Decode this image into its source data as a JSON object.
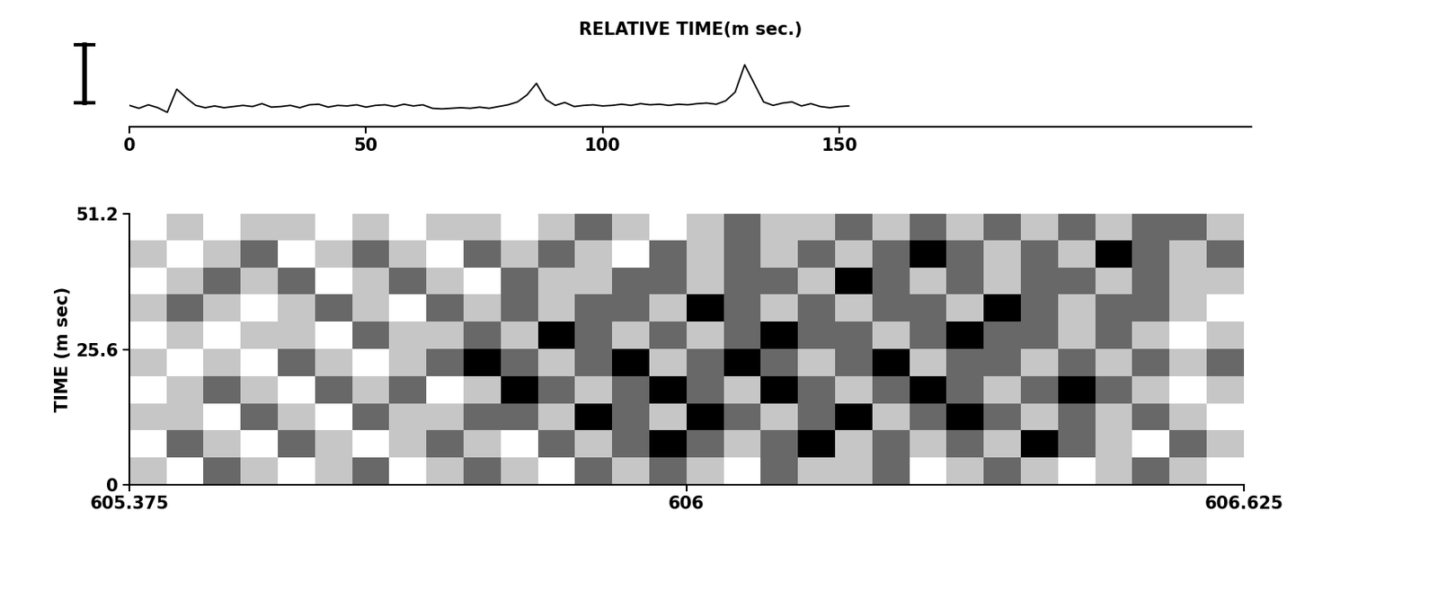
{
  "chart_data": [
    {
      "type": "line",
      "xlabel": "RELATIVE TIME(m sec.)",
      "x": [
        0,
        2,
        4,
        6,
        8,
        10,
        12,
        14,
        16,
        18,
        20,
        22,
        24,
        26,
        28,
        30,
        32,
        34,
        36,
        38,
        40,
        42,
        44,
        46,
        48,
        50,
        52,
        54,
        56,
        58,
        60,
        62,
        64,
        66,
        68,
        70,
        72,
        74,
        76,
        78,
        80,
        82,
        84,
        86,
        88,
        90,
        92,
        94,
        96,
        98,
        100,
        102,
        104,
        106,
        108,
        110,
        112,
        114,
        116,
        118,
        120,
        122,
        124,
        126,
        128,
        130,
        132,
        134,
        136,
        138,
        140,
        142,
        144,
        146,
        148,
        150,
        152
      ],
      "values": [
        0.02,
        -0.03,
        0.03,
        -0.02,
        -0.1,
        0.3,
        0.15,
        0.02,
        -0.02,
        0.01,
        -0.02,
        0.0,
        0.02,
        0.0,
        0.05,
        -0.01,
        0.0,
        0.02,
        -0.02,
        0.03,
        0.04,
        -0.01,
        0.02,
        0.01,
        0.03,
        -0.01,
        0.02,
        0.03,
        0.0,
        0.04,
        0.01,
        0.03,
        -0.03,
        -0.04,
        -0.03,
        -0.02,
        -0.03,
        -0.01,
        -0.03,
        0.0,
        0.03,
        0.08,
        0.2,
        0.4,
        0.12,
        0.02,
        0.07,
        0.0,
        0.02,
        0.03,
        0.01,
        0.02,
        0.04,
        0.02,
        0.05,
        0.03,
        0.04,
        0.02,
        0.04,
        0.03,
        0.05,
        0.06,
        0.04,
        0.1,
        0.25,
        0.72,
        0.4,
        0.08,
        0.02,
        0.06,
        0.08,
        0.01,
        0.05,
        0.0,
        -0.02,
        0.0,
        0.01
      ],
      "color": "#000000",
      "xlim": [
        0,
        237
      ],
      "xticks": [
        0,
        50,
        100,
        150
      ],
      "ylim": [
        -0.35,
        1.125
      ],
      "tick_labels": "x"
    },
    {
      "type": "heatmap",
      "ylabel": "TIME (m sec)",
      "xlim": [
        605.375,
        606.625
      ],
      "xticks": [
        605.375,
        606,
        606.625
      ],
      "ylim": [
        0,
        51.2
      ],
      "yticks": [
        0,
        25.6,
        51.2
      ],
      "cells": [
        [
          0.5,
          0.4,
          0.6,
          0.5,
          0.4,
          0.5,
          0.6,
          0.4,
          0.5,
          0.6,
          0.5,
          0.4,
          0.6,
          0.5,
          0.6,
          0.5,
          0.4,
          0.6,
          0.5,
          0.5,
          0.6,
          0.4,
          0.5,
          0.6,
          0.5,
          0.4,
          0.5,
          0.6,
          0.5,
          0.4
        ],
        [
          0.4,
          0.6,
          0.5,
          0.4,
          0.6,
          0.5,
          0.4,
          0.5,
          0.6,
          0.5,
          0.4,
          0.6,
          0.5,
          0.6,
          0.7,
          0.6,
          0.5,
          0.6,
          0.7,
          0.5,
          0.6,
          0.5,
          0.6,
          0.5,
          0.7,
          0.6,
          0.5,
          0.4,
          0.6,
          0.5
        ],
        [
          0.5,
          0.5,
          0.4,
          0.6,
          0.5,
          0.4,
          0.6,
          0.5,
          0.5,
          0.6,
          0.6,
          0.5,
          0.7,
          0.6,
          0.5,
          0.7,
          0.6,
          0.5,
          0.6,
          0.7,
          0.5,
          0.6,
          0.7,
          0.6,
          0.5,
          0.6,
          0.5,
          0.6,
          0.5,
          0.4
        ],
        [
          0.4,
          0.5,
          0.6,
          0.5,
          0.4,
          0.6,
          0.5,
          0.6,
          0.4,
          0.5,
          0.7,
          0.6,
          0.5,
          0.6,
          0.7,
          0.6,
          0.5,
          0.7,
          0.6,
          0.5,
          0.6,
          0.7,
          0.6,
          0.5,
          0.6,
          0.7,
          0.6,
          0.5,
          0.4,
          0.5
        ],
        [
          0.5,
          0.4,
          0.5,
          0.4,
          0.6,
          0.5,
          0.4,
          0.5,
          0.6,
          0.7,
          0.6,
          0.5,
          0.6,
          0.7,
          0.5,
          0.6,
          0.7,
          0.6,
          0.5,
          0.6,
          0.7,
          0.5,
          0.6,
          0.6,
          0.5,
          0.6,
          0.5,
          0.6,
          0.5,
          0.6
        ],
        [
          0.4,
          0.5,
          0.4,
          0.5,
          0.5,
          0.4,
          0.6,
          0.5,
          0.5,
          0.6,
          0.5,
          0.7,
          0.6,
          0.5,
          0.6,
          0.5,
          0.6,
          0.7,
          0.6,
          0.6,
          0.5,
          0.6,
          0.7,
          0.6,
          0.6,
          0.5,
          0.6,
          0.5,
          0.4,
          0.5
        ],
        [
          0.5,
          0.6,
          0.5,
          0.4,
          0.5,
          0.6,
          0.5,
          0.4,
          0.6,
          0.5,
          0.6,
          0.5,
          0.6,
          0.6,
          0.5,
          0.7,
          0.6,
          0.5,
          0.6,
          0.5,
          0.6,
          0.6,
          0.5,
          0.7,
          0.6,
          0.5,
          0.6,
          0.6,
          0.5,
          0.4
        ],
        [
          0.4,
          0.5,
          0.6,
          0.5,
          0.6,
          0.4,
          0.5,
          0.6,
          0.5,
          0.4,
          0.6,
          0.5,
          0.5,
          0.6,
          0.6,
          0.5,
          0.6,
          0.6,
          0.5,
          0.7,
          0.6,
          0.5,
          0.6,
          0.5,
          0.6,
          0.6,
          0.5,
          0.6,
          0.5,
          0.5
        ],
        [
          0.5,
          0.4,
          0.5,
          0.6,
          0.4,
          0.5,
          0.6,
          0.5,
          0.4,
          0.6,
          0.5,
          0.6,
          0.5,
          0.4,
          0.6,
          0.5,
          0.6,
          0.5,
          0.6,
          0.5,
          0.6,
          0.7,
          0.6,
          0.5,
          0.6,
          0.5,
          0.7,
          0.6,
          0.5,
          0.6
        ],
        [
          0.4,
          0.5,
          0.4,
          0.5,
          0.5,
          0.4,
          0.5,
          0.4,
          0.5,
          0.5,
          0.4,
          0.5,
          0.6,
          0.5,
          0.4,
          0.5,
          0.6,
          0.5,
          0.5,
          0.6,
          0.5,
          0.6,
          0.5,
          0.6,
          0.5,
          0.6,
          0.5,
          0.6,
          0.6,
          0.5
        ]
      ]
    }
  ]
}
